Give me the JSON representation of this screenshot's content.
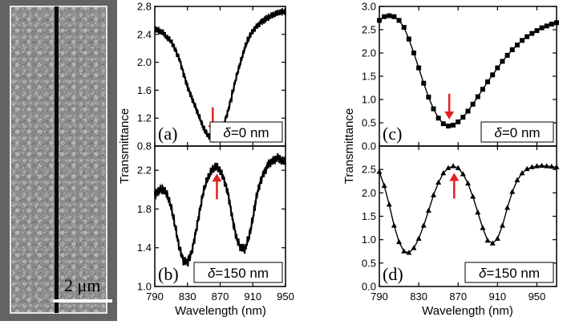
{
  "sem": {
    "scale_label": "2 μm"
  },
  "chart_data": [
    {
      "id": "a",
      "type": "line",
      "panel_label": "(a)",
      "annotation": {
        "symbol": "δ",
        "text": "=0 nm"
      },
      "xlabel": "Wavelength (nm)",
      "ylabel": "Transmittance",
      "xlim": [
        790,
        950
      ],
      "ylim": [
        0.8,
        2.8
      ],
      "xticks": [
        790,
        830,
        870,
        910,
        950
      ],
      "yticks": [
        0.8,
        1.2,
        1.6,
        2.0,
        2.4,
        2.8
      ],
      "ytick_labels": [
        "0.8",
        "1.2",
        "1.6",
        "2.0",
        "2.4",
        "2.8"
      ],
      "marker": "none",
      "line_color": "#000000",
      "arrow": {
        "x": 861,
        "direction": "down",
        "color": "#e02020"
      },
      "series": [
        {
          "x": [
            790,
            795,
            800,
            805,
            810,
            815,
            820,
            825,
            830,
            835,
            840,
            845,
            850,
            855,
            860,
            865,
            870,
            875,
            880,
            885,
            890,
            895,
            900,
            905,
            910,
            915,
            920,
            925,
            930,
            935,
            940,
            945,
            950
          ],
          "y": [
            2.48,
            2.45,
            2.42,
            2.35,
            2.3,
            2.18,
            2.05,
            1.85,
            1.65,
            1.5,
            1.35,
            1.2,
            1.05,
            0.95,
            0.89,
            0.91,
            1.0,
            1.12,
            1.32,
            1.55,
            1.8,
            2.0,
            2.2,
            2.35,
            2.45,
            2.52,
            2.58,
            2.62,
            2.65,
            2.68,
            2.7,
            2.72,
            2.72
          ]
        }
      ]
    },
    {
      "id": "b",
      "type": "line",
      "panel_label": "(b)",
      "annotation": {
        "symbol": "δ",
        "text": "=150 nm"
      },
      "xlabel": "Wavelength (nm)",
      "ylabel": "Transmittance",
      "xlim": [
        790,
        950
      ],
      "ylim": [
        1.0,
        2.45
      ],
      "xticks": [
        790,
        830,
        870,
        910,
        950
      ],
      "xtick_labels": [
        "790",
        "830",
        "870",
        "910",
        "950"
      ],
      "yticks": [
        1.0,
        1.4,
        1.8,
        2.2
      ],
      "ytick_labels": [
        "1.0",
        "1.4",
        "1.8",
        "2.2"
      ],
      "marker": "none",
      "line_color": "#000000",
      "arrow": {
        "x": 866,
        "direction": "up",
        "color": "#e02020"
      },
      "series": [
        {
          "x": [
            790,
            795,
            800,
            805,
            810,
            815,
            820,
            825,
            830,
            835,
            840,
            845,
            850,
            855,
            860,
            865,
            870,
            875,
            880,
            885,
            890,
            895,
            900,
            905,
            910,
            915,
            920,
            925,
            930,
            935,
            940,
            945,
            950
          ],
          "y": [
            1.95,
            2.0,
            2.0,
            1.95,
            1.82,
            1.62,
            1.4,
            1.27,
            1.25,
            1.35,
            1.55,
            1.78,
            2.0,
            2.12,
            2.2,
            2.24,
            2.2,
            2.1,
            1.95,
            1.7,
            1.5,
            1.4,
            1.38,
            1.5,
            1.7,
            1.95,
            2.1,
            2.2,
            2.28,
            2.3,
            2.33,
            2.3,
            2.28
          ]
        }
      ]
    },
    {
      "id": "c",
      "type": "line",
      "panel_label": "(c)",
      "annotation": {
        "symbol": "δ",
        "text": "=0 nm"
      },
      "xlabel": "Wavelength (nm)",
      "ylabel": "Transmittance",
      "xlim": [
        790,
        970
      ],
      "ylim": [
        0.0,
        3.0
      ],
      "xticks": [
        790,
        830,
        870,
        910,
        950
      ],
      "yticks": [
        0.0,
        0.5,
        1.0,
        1.5,
        2.0,
        2.5,
        3.0
      ],
      "ytick_labels": [
        "0.0",
        "0.5",
        "1.0",
        "1.5",
        "2.0",
        "2.5",
        "3.0"
      ],
      "marker": "square",
      "line_color": "#000000",
      "arrow": {
        "x": 861,
        "direction": "down",
        "color": "#e02020"
      },
      "series": [
        {
          "x": [
            790,
            795,
            800,
            805,
            810,
            815,
            820,
            825,
            830,
            835,
            840,
            845,
            850,
            855,
            860,
            865,
            870,
            875,
            880,
            885,
            890,
            895,
            900,
            905,
            910,
            915,
            920,
            925,
            930,
            935,
            940,
            945,
            950,
            955,
            960,
            965,
            970
          ],
          "y": [
            2.7,
            2.78,
            2.8,
            2.78,
            2.7,
            2.55,
            2.3,
            2.0,
            1.68,
            1.35,
            1.05,
            0.8,
            0.6,
            0.48,
            0.43,
            0.45,
            0.52,
            0.62,
            0.75,
            0.9,
            1.06,
            1.22,
            1.38,
            1.53,
            1.68,
            1.82,
            1.95,
            2.07,
            2.17,
            2.27,
            2.35,
            2.42,
            2.48,
            2.54,
            2.58,
            2.62,
            2.65
          ]
        }
      ]
    },
    {
      "id": "d",
      "type": "line",
      "panel_label": "(d)",
      "annotation": {
        "symbol": "δ",
        "text": "=150 nm"
      },
      "xlabel": "Wavelength (nm)",
      "ylabel": "Transmittance",
      "xlim": [
        790,
        970
      ],
      "ylim": [
        0.0,
        3.0
      ],
      "xticks": [
        790,
        830,
        870,
        910,
        950
      ],
      "xtick_labels": [
        "790",
        "830",
        "870",
        "910",
        "950"
      ],
      "yticks": [
        0.0,
        0.5,
        1.0,
        1.5,
        2.0,
        2.5
      ],
      "ytick_labels": [
        "0.0",
        "0.5",
        "1.0",
        "1.5",
        "2.0",
        "2.5"
      ],
      "marker": "triangle",
      "line_color": "#000000",
      "arrow": {
        "x": 866,
        "direction": "up",
        "color": "#e02020"
      },
      "series": [
        {
          "x": [
            790,
            795,
            800,
            805,
            810,
            815,
            820,
            825,
            830,
            835,
            840,
            845,
            850,
            855,
            860,
            865,
            870,
            875,
            880,
            885,
            890,
            895,
            900,
            905,
            910,
            915,
            920,
            925,
            930,
            935,
            940,
            945,
            950,
            955,
            960,
            965,
            970
          ],
          "y": [
            2.45,
            2.15,
            1.75,
            1.3,
            0.95,
            0.75,
            0.72,
            0.82,
            1.02,
            1.3,
            1.62,
            1.95,
            2.22,
            2.42,
            2.53,
            2.57,
            2.53,
            2.4,
            2.2,
            1.92,
            1.58,
            1.25,
            0.98,
            0.92,
            1.02,
            1.3,
            1.68,
            2.02,
            2.27,
            2.42,
            2.51,
            2.55,
            2.57,
            2.58,
            2.57,
            2.56,
            2.55
          ]
        }
      ]
    }
  ]
}
